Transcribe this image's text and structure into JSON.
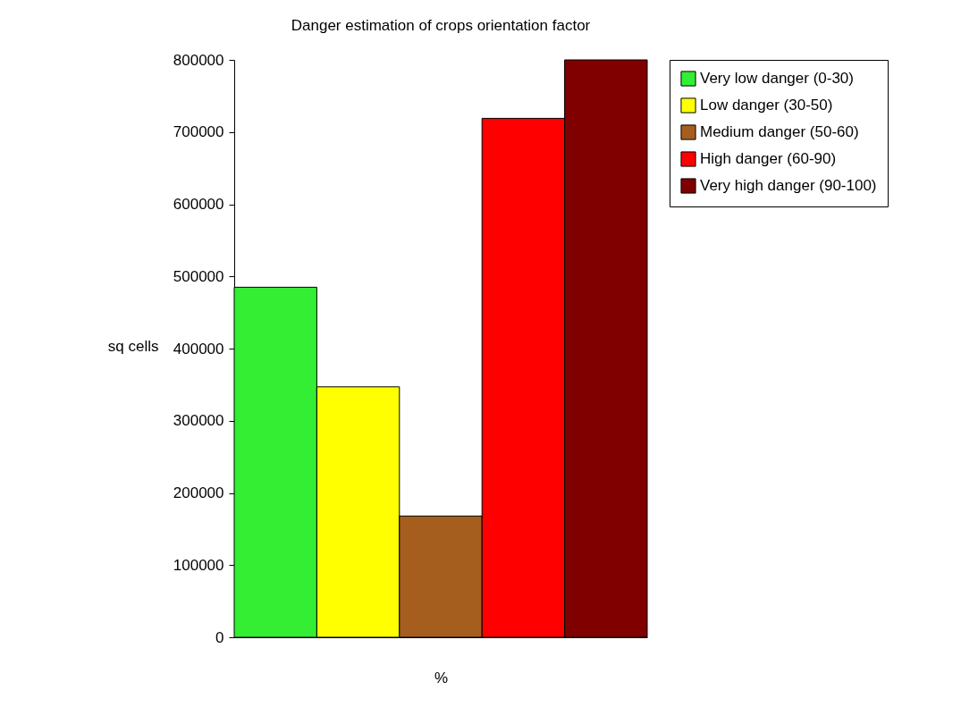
{
  "chart_data": {
    "type": "bar",
    "title": "Danger estimation of crops orientation factor",
    "xlabel": "%",
    "ylabel": "sq cells",
    "categories": [
      null
    ],
    "series": [
      {
        "name": "Very low danger (0-30)",
        "color": "#33ee33",
        "values": [
          485000
        ]
      },
      {
        "name": "Low danger (30-50)",
        "color": "#ffff00",
        "values": [
          347000
        ]
      },
      {
        "name": "Medium danger (50-60)",
        "color": "#a65e1e",
        "values": [
          168000
        ]
      },
      {
        "name": "High danger (60-90)",
        "color": "#ff0000",
        "values": [
          719000
        ]
      },
      {
        "name": "Very high danger (90-100)",
        "color": "#800000",
        "values": [
          800000
        ]
      }
    ],
    "ylim": [
      0,
      800000
    ],
    "yticks": [
      0,
      100000,
      200000,
      300000,
      400000,
      500000,
      600000,
      700000,
      800000
    ],
    "grid": false,
    "legend": "right"
  }
}
